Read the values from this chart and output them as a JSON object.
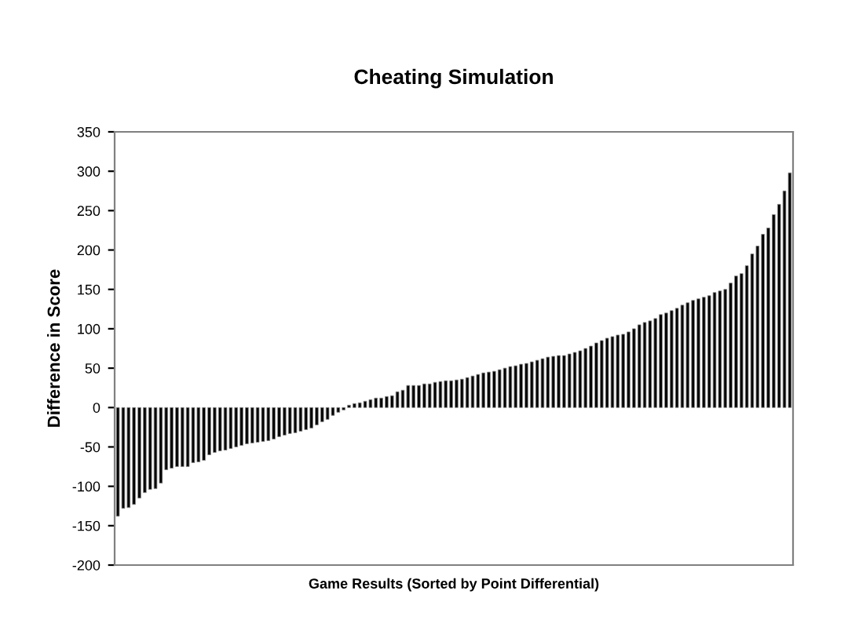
{
  "chart_data": {
    "type": "bar",
    "title": "Cheating Simulation",
    "xlabel": "Game Results (Sorted by Point Differential)",
    "ylabel": "Difference in Score",
    "values": [
      -138,
      -128,
      -127,
      -123,
      -115,
      -108,
      -104,
      -103,
      -96,
      -79,
      -77,
      -75,
      -75,
      -75,
      -70,
      -69,
      -67,
      -60,
      -57,
      -55,
      -54,
      -52,
      -50,
      -48,
      -46,
      -45,
      -44,
      -43,
      -42,
      -40,
      -37,
      -35,
      -33,
      -32,
      -30,
      -28,
      -26,
      -22,
      -18,
      -15,
      -10,
      -6,
      -3,
      3,
      5,
      6,
      8,
      10,
      12,
      12,
      14,
      15,
      20,
      22,
      28,
      28,
      28,
      30,
      30,
      32,
      33,
      34,
      34,
      35,
      36,
      38,
      40,
      42,
      44,
      45,
      46,
      48,
      50,
      52,
      53,
      55,
      56,
      58,
      60,
      62,
      64,
      65,
      66,
      66,
      68,
      70,
      72,
      75,
      78,
      82,
      85,
      88,
      90,
      92,
      93,
      96,
      100,
      105,
      108,
      110,
      113,
      118,
      120,
      123,
      126,
      130,
      133,
      136,
      138,
      140,
      142,
      146,
      148,
      150,
      158,
      167,
      170,
      180,
      195,
      205,
      220,
      228,
      245,
      258,
      275,
      298
    ],
    "color": "#000000",
    "ylim": [
      -200,
      350
    ],
    "yticks": [
      -200,
      -150,
      -100,
      -50,
      0,
      50,
      100,
      150,
      200,
      250,
      300,
      350
    ],
    "grid": false,
    "tick_labels": "y"
  }
}
